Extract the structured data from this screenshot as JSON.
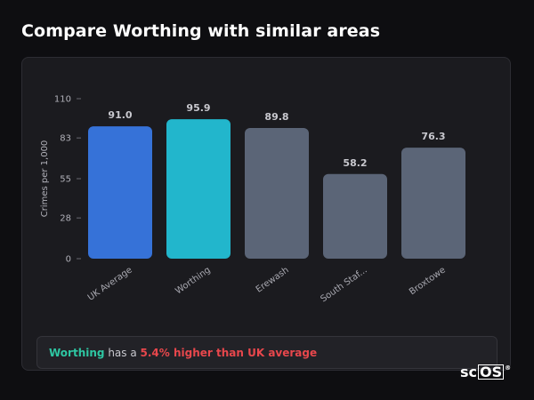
{
  "title": "Compare Worthing with similar areas",
  "chart_data": {
    "type": "bar",
    "categories": [
      "UK Average",
      "Worthing",
      "Erewash",
      "South Staf...",
      "Broxtowe"
    ],
    "values": [
      91.0,
      95.9,
      89.8,
      58.2,
      76.3
    ],
    "value_labels": [
      "91.0",
      "95.9",
      "89.8",
      "58.2",
      "76.3"
    ],
    "ylabel": "Crimes per 1,000",
    "ylim": [
      0,
      110
    ],
    "yticks": [
      0,
      28,
      55,
      83,
      110
    ],
    "bar_colors": [
      "#3672d8",
      "#22b6cc",
      "#5b6577",
      "#5b6577",
      "#5b6577"
    ],
    "grid": false
  },
  "summary": {
    "area": "Worthing",
    "middle": " has a ",
    "difference": "5.4% higher than UK average"
  },
  "logo": {
    "prefix": "sc",
    "boxed": "OS",
    "mark": "®"
  },
  "colors": {
    "background": "#0e0e11",
    "card": "#1b1b1f",
    "area_highlight": "#2ec7a3",
    "difference_highlight": "#e8474c"
  }
}
